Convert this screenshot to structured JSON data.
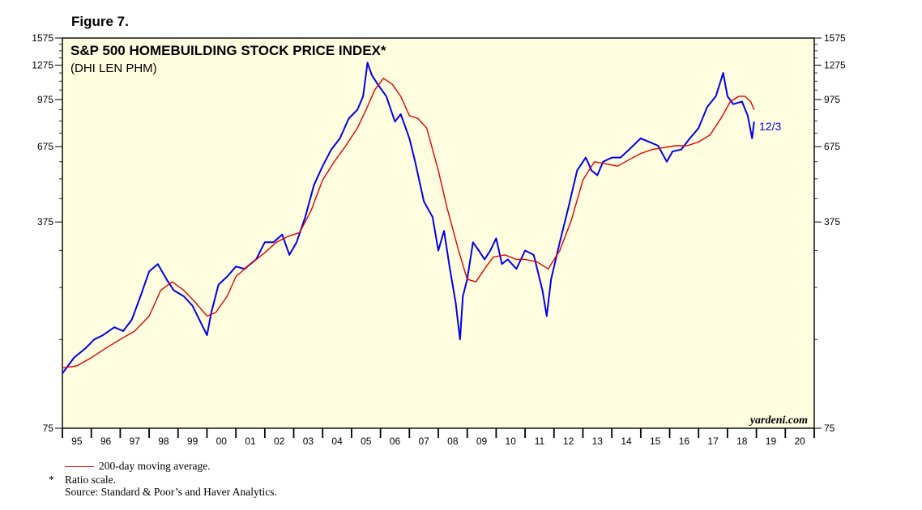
{
  "figure_label": "Figure 7.",
  "footnotes": {
    "legend_ma": "200-day moving average.",
    "star": "*",
    "ratio_scale": "Ratio scale.",
    "source": "Source: Standard & Poor’s and Haver Analytics."
  },
  "chart_data": {
    "type": "line",
    "title": "S&P 500 HOMEBUILDING STOCK PRICE INDEX*",
    "subtitle": "(DHI LEN PHM)",
    "watermark": "yardeni.com",
    "end_label": "12/3",
    "y_scale": "log",
    "ylim": [
      75,
      1575
    ],
    "y_ticks": [
      75,
      375,
      675,
      975,
      1275,
      1575
    ],
    "x_range": [
      1995,
      2021
    ],
    "x_tick_labels": [
      "95",
      "96",
      "97",
      "98",
      "99",
      "00",
      "01",
      "02",
      "03",
      "04",
      "05",
      "06",
      "07",
      "08",
      "09",
      "10",
      "11",
      "12",
      "13",
      "14",
      "15",
      "16",
      "17",
      "18",
      "19",
      "20"
    ],
    "background": "#fffde0",
    "series": [
      {
        "color": "#0000ee",
        "x": [
          1995.0,
          1995.4,
          1995.8,
          1996.1,
          1996.4,
          1996.8,
          1997.1,
          1997.4,
          1997.7,
          1998.0,
          1998.3,
          1998.6,
          1998.85,
          1999.2,
          1999.5,
          1999.8,
          2000.0,
          2000.15,
          2000.4,
          2000.7,
          2001.0,
          2001.3,
          2001.7,
          2002.0,
          2002.3,
          2002.6,
          2002.85,
          2003.1,
          2003.4,
          2003.7,
          2004.0,
          2004.3,
          2004.6,
          2004.9,
          2005.2,
          2005.4,
          2005.55,
          2005.7,
          2005.9,
          2006.2,
          2006.5,
          2006.7,
          2007.0,
          2007.2,
          2007.5,
          2007.8,
          2008.0,
          2008.2,
          2008.4,
          2008.6,
          2008.75,
          2008.85,
          2009.0,
          2009.2,
          2009.4,
          2009.6,
          2009.8,
          2010.0,
          2010.2,
          2010.4,
          2010.7,
          2011.0,
          2011.3,
          2011.6,
          2011.75,
          2011.9,
          2012.2,
          2012.5,
          2012.8,
          2013.1,
          2013.3,
          2013.5,
          2013.7,
          2014.0,
          2014.3,
          2014.6,
          2015.0,
          2015.3,
          2015.6,
          2015.9,
          2016.1,
          2016.4,
          2016.7,
          2017.0,
          2017.3,
          2017.6,
          2017.85,
          2018.0,
          2018.2,
          2018.5,
          2018.7,
          2018.85,
          2018.92
        ],
        "y": [
          115,
          130,
          140,
          150,
          155,
          165,
          160,
          175,
          210,
          255,
          270,
          240,
          220,
          210,
          195,
          170,
          155,
          185,
          230,
          245,
          265,
          260,
          280,
          320,
          320,
          340,
          290,
          320,
          390,
          500,
          580,
          660,
          720,
          840,
          900,
          1000,
          1300,
          1180,
          1100,
          1000,
          820,
          870,
          720,
          600,
          440,
          390,
          300,
          350,
          260,
          200,
          150,
          210,
          240,
          320,
          300,
          280,
          300,
          330,
          270,
          280,
          260,
          300,
          290,
          220,
          180,
          240,
          320,
          420,
          560,
          620,
          560,
          540,
          600,
          620,
          620,
          660,
          720,
          700,
          680,
          600,
          650,
          660,
          720,
          780,
          920,
          1000,
          1200,
          1000,
          940,
          960,
          860,
          720,
          820
        ]
      },
      {
        "name": "200-day moving average.",
        "color": "#e00000",
        "x": [
          1995.0,
          1995.5,
          1996.0,
          1996.5,
          1997.0,
          1997.5,
          1998.0,
          1998.4,
          1998.8,
          1999.2,
          1999.6,
          2000.0,
          2000.3,
          2000.7,
          2001.0,
          2001.5,
          2002.0,
          2002.4,
          2002.8,
          2003.2,
          2003.6,
          2004.0,
          2004.4,
          2004.8,
          2005.2,
          2005.5,
          2005.8,
          2006.1,
          2006.4,
          2006.7,
          2007.0,
          2007.3,
          2007.6,
          2008.0,
          2008.3,
          2008.7,
          2009.0,
          2009.3,
          2009.6,
          2009.9,
          2010.3,
          2010.7,
          2011.0,
          2011.4,
          2011.8,
          2012.2,
          2012.6,
          2013.0,
          2013.4,
          2013.8,
          2014.2,
          2014.6,
          2015.0,
          2015.4,
          2015.8,
          2016.2,
          2016.6,
          2017.0,
          2017.4,
          2017.8,
          2018.1,
          2018.4,
          2018.6,
          2018.8,
          2018.92
        ],
        "y": [
          120,
          122,
          130,
          140,
          150,
          160,
          180,
          220,
          235,
          220,
          200,
          180,
          185,
          210,
          245,
          270,
          295,
          320,
          335,
          345,
          410,
          520,
          600,
          680,
          780,
          900,
          1050,
          1150,
          1100,
          1000,
          860,
          840,
          780,
          560,
          420,
          300,
          240,
          235,
          260,
          285,
          290,
          280,
          280,
          275,
          260,
          300,
          380,
          520,
          600,
          590,
          580,
          610,
          640,
          660,
          670,
          680,
          680,
          700,
          740,
          850,
          960,
          1000,
          1000,
          960,
          900
        ]
      }
    ]
  }
}
